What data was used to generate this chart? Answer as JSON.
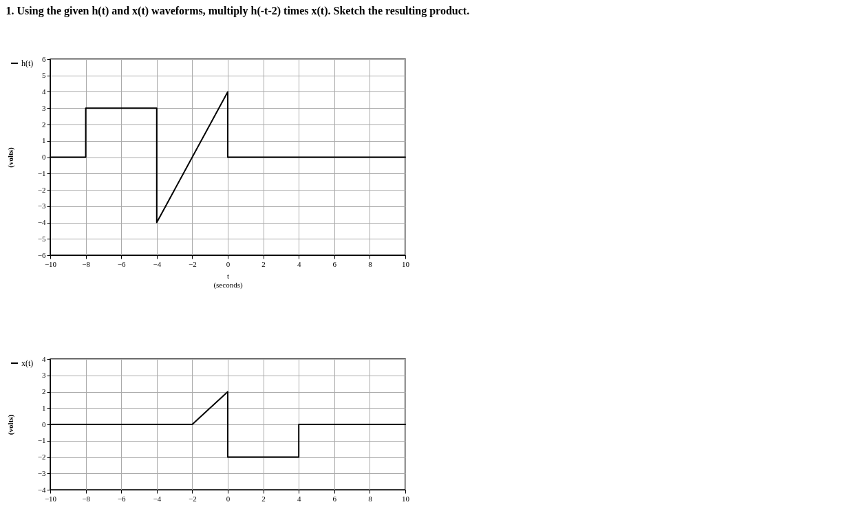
{
  "chart_data": [
    {
      "type": "line",
      "title": "1. Using the given h(t) and x(t) waveforms, multiply h(-t-2) times x(t). Sketch the resulting product.",
      "xlabel": "t\n(seconds)",
      "ylabel": "(volts)",
      "x": [
        -10,
        -8,
        -8,
        -4,
        -4,
        0,
        0,
        10
      ],
      "series": [
        {
          "name": "h(t)",
          "color": "#000000",
          "values": [
            0,
            0,
            3,
            3,
            -4,
            4,
            0,
            0
          ]
        }
      ],
      "xlim": [
        -10,
        10
      ],
      "xticks": [
        -10,
        -8,
        -6,
        -4,
        -2,
        0,
        2,
        4,
        6,
        8,
        10
      ],
      "ylim": [
        -6,
        6
      ],
      "yticks": [
        -6,
        -5,
        -4,
        -3,
        -2,
        -1,
        0,
        1,
        2,
        3,
        4,
        5,
        6
      ],
      "grid": true,
      "legend": "left",
      "marker": "none",
      "line_style": "solid"
    },
    {
      "type": "line",
      "ylabel": "(volts)",
      "x": [
        -10,
        -2,
        0,
        0,
        4,
        4,
        10
      ],
      "series": [
        {
          "name": "x(t)",
          "color": "#000000",
          "values": [
            0,
            0,
            2,
            -2,
            -2,
            0,
            0
          ]
        }
      ],
      "xlim": [
        -10,
        10
      ],
      "xticks": [
        -10,
        -8,
        -6,
        -4,
        -2,
        0,
        2,
        4,
        6,
        8,
        10
      ],
      "ylim": [
        -4,
        4
      ],
      "yticks": [
        -4,
        -3,
        -2,
        -1,
        0,
        1,
        2,
        3,
        4
      ],
      "grid": true,
      "legend": "left",
      "marker": "none",
      "line_style": "solid"
    }
  ]
}
